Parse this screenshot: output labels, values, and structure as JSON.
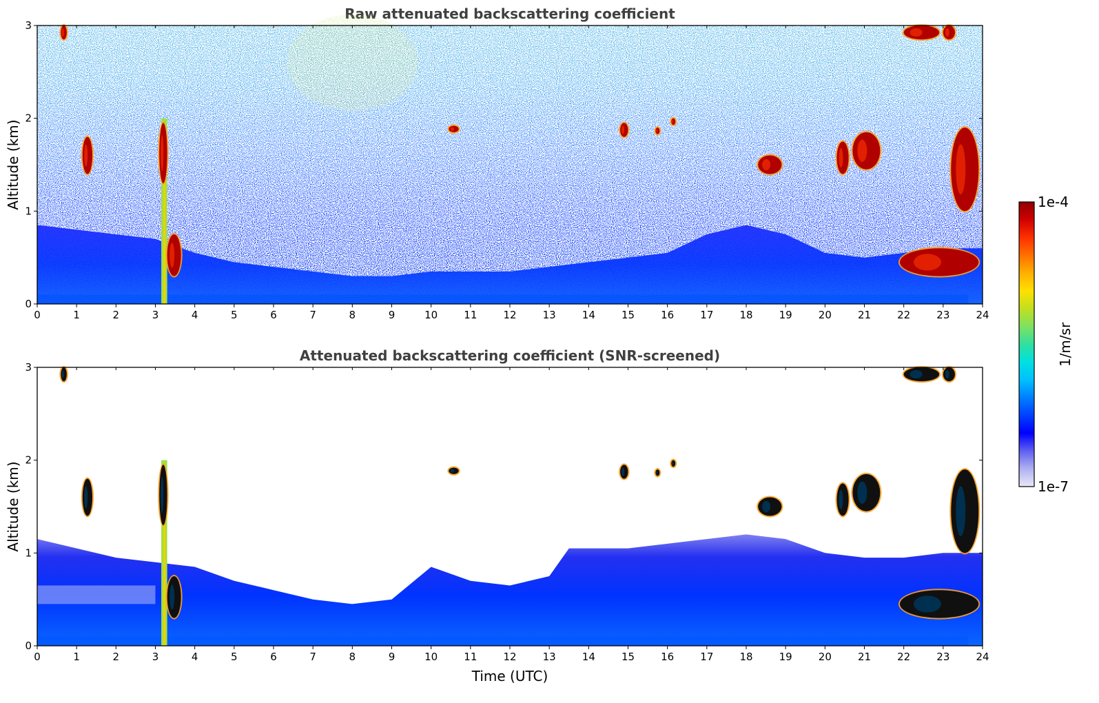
{
  "chart_data": [
    {
      "type": "heatmap",
      "title": "Raw attenuated backscattering coefficient",
      "xlabel": "",
      "ylabel": "Altitude (km)",
      "xlim": [
        0,
        24
      ],
      "ylim": [
        0,
        3
      ],
      "x_ticks": [
        "0",
        "1",
        "2",
        "3",
        "4",
        "5",
        "6",
        "7",
        "8",
        "9",
        "10",
        "11",
        "12",
        "13",
        "14",
        "15",
        "16",
        "17",
        "18",
        "19",
        "20",
        "21",
        "22",
        "23",
        "24"
      ],
      "y_ticks": [
        "0",
        "1",
        "2",
        "3"
      ],
      "boundary_layer_top_km": [
        [
          0,
          0.85
        ],
        [
          1,
          0.8
        ],
        [
          2,
          0.75
        ],
        [
          3,
          0.7
        ],
        [
          4,
          0.55
        ],
        [
          5,
          0.45
        ],
        [
          6,
          0.4
        ],
        [
          7,
          0.35
        ],
        [
          8,
          0.3
        ],
        [
          9,
          0.3
        ],
        [
          10,
          0.35
        ],
        [
          11,
          0.35
        ],
        [
          12,
          0.35
        ],
        [
          13,
          0.4
        ],
        [
          14,
          0.45
        ],
        [
          15,
          0.5
        ],
        [
          16,
          0.55
        ],
        [
          17,
          0.75
        ],
        [
          18,
          0.85
        ],
        [
          19,
          0.75
        ],
        [
          20,
          0.55
        ],
        [
          21,
          0.5
        ],
        [
          22,
          0.55
        ],
        [
          23,
          0.6
        ],
        [
          24,
          0.6
        ]
      ],
      "cloud_features": [
        {
          "time_utc": [
            0.6,
            0.75
          ],
          "altitude_km": [
            2.85,
            3.0
          ]
        },
        {
          "time_utc": [
            1.15,
            1.4
          ],
          "altitude_km": [
            1.4,
            1.8
          ]
        },
        {
          "time_utc": [
            3.1,
            3.3
          ],
          "altitude_km": [
            1.3,
            1.95
          ]
        },
        {
          "time_utc": [
            3.3,
            3.65
          ],
          "altitude_km": [
            0.3,
            0.75
          ]
        },
        {
          "time_utc": [
            10.45,
            10.7
          ],
          "altitude_km": [
            1.85,
            1.92
          ]
        },
        {
          "time_utc": [
            14.8,
            15.0
          ],
          "altitude_km": [
            1.8,
            1.95
          ]
        },
        {
          "time_utc": [
            15.7,
            15.8
          ],
          "altitude_km": [
            1.83,
            1.9
          ]
        },
        {
          "time_utc": [
            16.1,
            16.2
          ],
          "altitude_km": [
            1.93,
            2.0
          ]
        },
        {
          "time_utc": [
            18.3,
            18.9
          ],
          "altitude_km": [
            1.4,
            1.6
          ]
        },
        {
          "time_utc": [
            20.3,
            20.6
          ],
          "altitude_km": [
            1.4,
            1.75
          ]
        },
        {
          "time_utc": [
            20.7,
            21.4
          ],
          "altitude_km": [
            1.45,
            1.85
          ]
        },
        {
          "time_utc": [
            22.0,
            22.9
          ],
          "altitude_km": [
            2.85,
            3.0
          ]
        },
        {
          "time_utc": [
            23.0,
            23.3
          ],
          "altitude_km": [
            2.85,
            3.0
          ]
        },
        {
          "time_utc": [
            21.9,
            23.9
          ],
          "altitude_km": [
            0.3,
            0.6
          ]
        },
        {
          "time_utc": [
            23.2,
            23.9
          ],
          "altitude_km": [
            1.0,
            1.9
          ]
        }
      ],
      "precipitation_column": {
        "time_utc": [
          3.15,
          3.3
        ],
        "altitude_km": [
          0,
          2.0
        ]
      }
    },
    {
      "type": "heatmap",
      "title": "Attenuated backscattering coefficient (SNR-screened)",
      "xlabel": "Time (UTC)",
      "ylabel": "Altitude (km)",
      "xlim": [
        0,
        24
      ],
      "ylim": [
        0,
        3
      ],
      "x_ticks": [
        "0",
        "1",
        "2",
        "3",
        "4",
        "5",
        "6",
        "7",
        "8",
        "9",
        "10",
        "11",
        "12",
        "13",
        "14",
        "15",
        "16",
        "17",
        "18",
        "19",
        "20",
        "21",
        "22",
        "23",
        "24"
      ],
      "y_ticks": [
        "0",
        "1",
        "2",
        "3"
      ],
      "aerosol_layer_top_km": [
        [
          0,
          1.15
        ],
        [
          1,
          1.05
        ],
        [
          2,
          0.95
        ],
        [
          3,
          0.9
        ],
        [
          4,
          0.85
        ],
        [
          5,
          0.7
        ],
        [
          6,
          0.6
        ],
        [
          7,
          0.5
        ],
        [
          8,
          0.45
        ],
        [
          9,
          0.5
        ],
        [
          10,
          0.85
        ],
        [
          11,
          0.7
        ],
        [
          12,
          0.65
        ],
        [
          13,
          0.75
        ],
        [
          13.5,
          1.05
        ],
        [
          14,
          1.05
        ],
        [
          15,
          1.05
        ],
        [
          16,
          1.1
        ],
        [
          17,
          1.15
        ],
        [
          18,
          1.2
        ],
        [
          19,
          1.15
        ],
        [
          20,
          1.0
        ],
        [
          21,
          0.95
        ],
        [
          22,
          0.95
        ],
        [
          23,
          1.0
        ],
        [
          24,
          1.0
        ]
      ],
      "cloud_features": [
        {
          "time_utc": [
            0.6,
            0.75
          ],
          "altitude_km": [
            2.85,
            3.0
          ]
        },
        {
          "time_utc": [
            1.15,
            1.4
          ],
          "altitude_km": [
            1.4,
            1.8
          ]
        },
        {
          "time_utc": [
            3.1,
            3.3
          ],
          "altitude_km": [
            1.3,
            1.95
          ]
        },
        {
          "time_utc": [
            3.3,
            3.65
          ],
          "altitude_km": [
            0.3,
            0.75
          ]
        },
        {
          "time_utc": [
            10.45,
            10.7
          ],
          "altitude_km": [
            1.85,
            1.92
          ]
        },
        {
          "time_utc": [
            14.8,
            15.0
          ],
          "altitude_km": [
            1.8,
            1.95
          ]
        },
        {
          "time_utc": [
            15.7,
            15.8
          ],
          "altitude_km": [
            1.83,
            1.9
          ]
        },
        {
          "time_utc": [
            16.1,
            16.2
          ],
          "altitude_km": [
            1.93,
            2.0
          ]
        },
        {
          "time_utc": [
            18.3,
            18.9
          ],
          "altitude_km": [
            1.4,
            1.6
          ]
        },
        {
          "time_utc": [
            20.3,
            20.6
          ],
          "altitude_km": [
            1.4,
            1.75
          ]
        },
        {
          "time_utc": [
            20.7,
            21.4
          ],
          "altitude_km": [
            1.45,
            1.85
          ]
        },
        {
          "time_utc": [
            22.0,
            22.9
          ],
          "altitude_km": [
            2.85,
            3.0
          ]
        },
        {
          "time_utc": [
            23.0,
            23.3
          ],
          "altitude_km": [
            2.85,
            3.0
          ]
        },
        {
          "time_utc": [
            21.9,
            23.9
          ],
          "altitude_km": [
            0.3,
            0.6
          ]
        },
        {
          "time_utc": [
            23.2,
            23.9
          ],
          "altitude_km": [
            1.0,
            1.9
          ]
        }
      ],
      "precipitation_column": {
        "time_utc": [
          3.15,
          3.3
        ],
        "altitude_km": [
          0,
          2.0
        ]
      }
    }
  ],
  "colorbar": {
    "label": "1/m/sr",
    "max_label": "1e-4",
    "min_label": "1e-7",
    "colors": [
      "#e8e8f8",
      "#b0b0f0",
      "#6060f0",
      "#0000ff",
      "#0040ff",
      "#0080ff",
      "#00c0ff",
      "#00e0e0",
      "#30e0a0",
      "#80e060",
      "#c0e020",
      "#ffe000",
      "#ffb000",
      "#ff7000",
      "#ff3000",
      "#d00000",
      "#900000"
    ]
  }
}
